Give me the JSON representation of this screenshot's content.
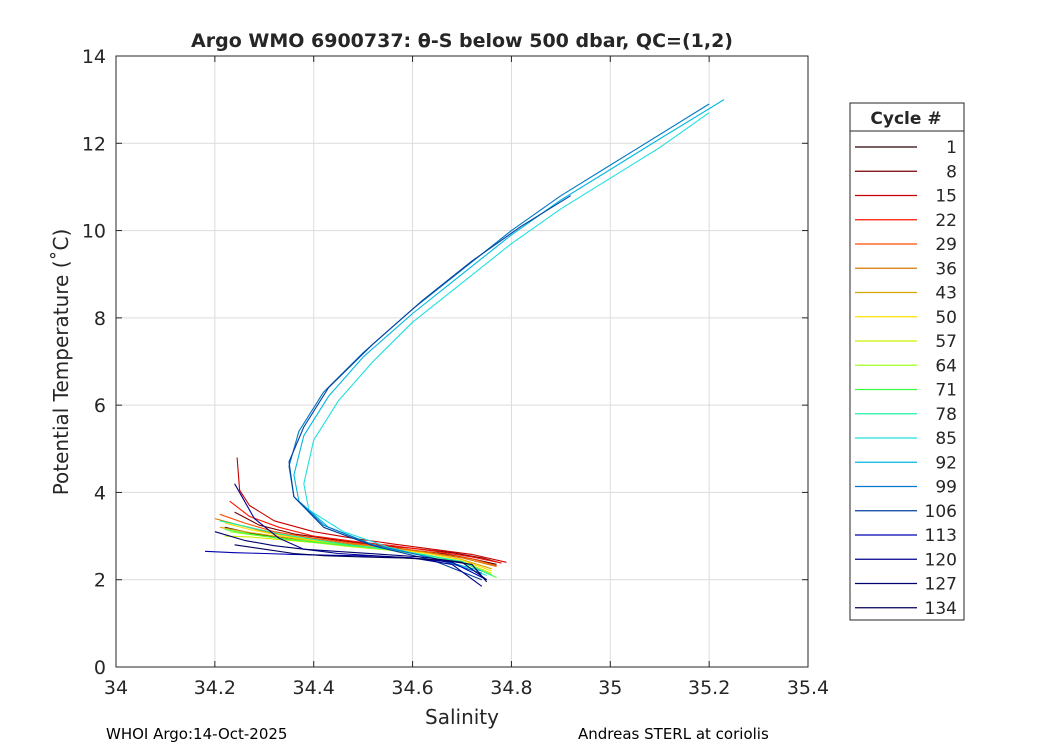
{
  "chart_data": {
    "type": "line",
    "title": "Argo WMO 6900737: θ-S below 500 dbar,  QC=(1,2)",
    "xlabel": "Salinity",
    "ylabel": "Potential Temperature (˚C)",
    "xlim": [
      34,
      35.4
    ],
    "ylim": [
      0,
      14
    ],
    "xticks": [
      "34",
      "34.2",
      "34.4",
      "34.6",
      "34.8",
      "35",
      "35.2",
      "35.4"
    ],
    "yticks": [
      "0",
      "2",
      "4",
      "6",
      "8",
      "10",
      "12",
      "14"
    ],
    "grid": true,
    "legend": {
      "title": "Cycle #",
      "placement": "outside-right",
      "entries": [
        "1",
        "8",
        "15",
        "22",
        "29",
        "36",
        "43",
        "50",
        "57",
        "64",
        "71",
        "78",
        "85",
        "92",
        "99",
        "106",
        "113",
        "120",
        "127",
        "134"
      ],
      "colors": [
        "#2a0000",
        "#7a0000",
        "#c80000",
        "#ff1400",
        "#ff4c00",
        "#d87a00",
        "#d4a800",
        "#ffe000",
        "#ccf000",
        "#a0ff20",
        "#40ff40",
        "#20f0a0",
        "#20e0e0",
        "#00b8e0",
        "#0078c8",
        "#0040a0",
        "#0000b0",
        "#00008c",
        "#000070",
        "#000058"
      ]
    },
    "series": [
      {
        "cycle": "1",
        "color": "#2a0000",
        "x": [
          34.22,
          34.28,
          34.35,
          34.42,
          34.5,
          34.58,
          34.66,
          34.72,
          34.77
        ],
        "y": [
          3.2,
          3.05,
          2.95,
          2.85,
          2.78,
          2.7,
          2.6,
          2.48,
          2.35
        ]
      },
      {
        "cycle": "8",
        "color": "#7a0000",
        "x": [
          34.24,
          34.29,
          34.36,
          34.44,
          34.52,
          34.6,
          34.68,
          34.74,
          34.78
        ],
        "y": [
          3.55,
          3.25,
          3.05,
          2.92,
          2.8,
          2.72,
          2.62,
          2.5,
          2.38
        ]
      },
      {
        "cycle": "15",
        "color": "#c80000",
        "x": [
          34.245,
          34.25,
          34.27,
          34.32,
          34.4,
          34.48,
          34.56,
          34.64,
          34.72,
          34.79
        ],
        "y": [
          4.8,
          4.05,
          3.7,
          3.35,
          3.1,
          2.95,
          2.82,
          2.7,
          2.58,
          2.4
        ]
      },
      {
        "cycle": "22",
        "color": "#ff1400",
        "x": [
          34.23,
          34.27,
          34.33,
          34.4,
          34.48,
          34.56,
          34.64,
          34.72,
          34.78
        ],
        "y": [
          3.8,
          3.45,
          3.2,
          3.0,
          2.88,
          2.78,
          2.66,
          2.52,
          2.38
        ]
      },
      {
        "cycle": "29",
        "color": "#ff4c00",
        "x": [
          34.21,
          34.26,
          34.32,
          34.4,
          34.48,
          34.56,
          34.64,
          34.72,
          34.77
        ],
        "y": [
          3.5,
          3.3,
          3.1,
          2.95,
          2.84,
          2.74,
          2.62,
          2.48,
          2.32
        ]
      },
      {
        "cycle": "36",
        "color": "#d87a00",
        "x": [
          34.2,
          34.25,
          34.31,
          34.38,
          34.46,
          34.54,
          34.62,
          34.7,
          34.77
        ],
        "y": [
          3.4,
          3.25,
          3.08,
          2.95,
          2.84,
          2.74,
          2.64,
          2.5,
          2.3
        ]
      },
      {
        "cycle": "43",
        "color": "#d4a800",
        "x": [
          34.21,
          34.26,
          34.32,
          34.39,
          34.46,
          34.54,
          34.62,
          34.7,
          34.76
        ],
        "y": [
          3.2,
          3.1,
          3.0,
          2.9,
          2.8,
          2.72,
          2.62,
          2.46,
          2.25
        ]
      },
      {
        "cycle": "50",
        "color": "#ffe000",
        "x": [
          34.22,
          34.27,
          34.33,
          34.4,
          34.47,
          34.55,
          34.63,
          34.7,
          34.76
        ],
        "y": [
          3.3,
          3.15,
          3.02,
          2.9,
          2.8,
          2.72,
          2.6,
          2.45,
          2.2
        ]
      },
      {
        "cycle": "57",
        "color": "#ccf000",
        "x": [
          34.22,
          34.27,
          34.33,
          34.4,
          34.47,
          34.55,
          34.62,
          34.7,
          34.76
        ],
        "y": [
          3.0,
          2.98,
          2.92,
          2.85,
          2.76,
          2.68,
          2.58,
          2.42,
          2.15
        ]
      },
      {
        "cycle": "64",
        "color": "#a0ff20",
        "x": [
          34.23,
          34.28,
          34.34,
          34.41,
          34.48,
          34.55,
          34.63,
          34.7,
          34.76
        ],
        "y": [
          3.1,
          3.02,
          2.94,
          2.86,
          2.78,
          2.68,
          2.56,
          2.4,
          2.12
        ]
      },
      {
        "cycle": "71",
        "color": "#40ff40",
        "x": [
          34.22,
          34.27,
          34.33,
          34.4,
          34.47,
          34.55,
          34.62,
          34.7,
          34.77
        ],
        "y": [
          3.15,
          3.05,
          2.95,
          2.86,
          2.78,
          2.7,
          2.58,
          2.4,
          2.05
        ]
      },
      {
        "cycle": "78",
        "color": "#20f0a0",
        "x": [
          34.21,
          34.27,
          34.33,
          34.4,
          34.47,
          34.55,
          34.62,
          34.7,
          34.76
        ],
        "y": [
          3.35,
          3.2,
          3.05,
          2.92,
          2.8,
          2.7,
          2.58,
          2.42,
          2.1
        ]
      },
      {
        "cycle": "85",
        "color": "#20e0e0",
        "x": [
          34.75,
          34.66,
          34.55,
          34.46,
          34.39,
          34.38,
          34.4,
          34.45,
          34.52,
          34.6,
          34.7,
          34.8,
          34.9,
          35.0,
          35.1,
          35.2
        ],
        "y": [
          2.1,
          2.45,
          2.75,
          3.1,
          3.6,
          4.2,
          5.2,
          6.1,
          7.0,
          7.9,
          8.8,
          9.7,
          10.5,
          11.2,
          11.9,
          12.7
        ]
      },
      {
        "cycle": "92",
        "color": "#00b8e0",
        "x": [
          34.74,
          34.64,
          34.52,
          34.43,
          34.37,
          34.36,
          34.38,
          34.43,
          34.5,
          34.6,
          34.7,
          34.8,
          34.9,
          35.0,
          35.1,
          35.23
        ],
        "y": [
          2.2,
          2.5,
          2.8,
          3.2,
          3.8,
          4.4,
          5.3,
          6.2,
          7.1,
          8.1,
          9.0,
          9.9,
          10.7,
          11.4,
          12.1,
          13.0
        ]
      },
      {
        "cycle": "99",
        "color": "#0078c8",
        "x": [
          34.74,
          34.64,
          34.52,
          34.42,
          34.36,
          34.35,
          34.37,
          34.42,
          34.5,
          34.6,
          34.7,
          34.8,
          34.9,
          35.0,
          35.1,
          35.2
        ],
        "y": [
          2.15,
          2.5,
          2.8,
          3.25,
          3.9,
          4.6,
          5.4,
          6.3,
          7.2,
          8.2,
          9.1,
          10.0,
          10.8,
          11.5,
          12.2,
          12.9
        ]
      },
      {
        "cycle": "106",
        "color": "#0040a0",
        "x": [
          34.74,
          34.64,
          34.52,
          34.42,
          34.36,
          34.35,
          34.38,
          34.43,
          34.52,
          34.62,
          34.72,
          34.82,
          34.92
        ],
        "y": [
          2.0,
          2.45,
          2.78,
          3.2,
          3.9,
          4.7,
          5.5,
          6.4,
          7.4,
          8.4,
          9.3,
          10.1,
          10.8
        ]
      },
      {
        "cycle": "113",
        "color": "#0000b0",
        "x": [
          34.18,
          34.24,
          34.3,
          34.36,
          34.44,
          34.52,
          34.6,
          34.68,
          34.75
        ],
        "y": [
          2.65,
          2.62,
          2.6,
          2.58,
          2.56,
          2.54,
          2.5,
          2.4,
          2.0
        ]
      },
      {
        "cycle": "120",
        "color": "#00008c",
        "x": [
          34.24,
          34.28,
          34.33,
          34.38,
          34.45,
          34.52,
          34.6,
          34.68,
          34.74
        ],
        "y": [
          4.2,
          3.4,
          2.95,
          2.7,
          2.6,
          2.55,
          2.5,
          2.35,
          1.85
        ]
      },
      {
        "cycle": "127",
        "color": "#000070",
        "x": [
          34.2,
          34.26,
          34.32,
          34.38,
          34.46,
          34.54,
          34.62,
          34.7,
          34.75
        ],
        "y": [
          3.1,
          2.9,
          2.78,
          2.7,
          2.64,
          2.58,
          2.52,
          2.4,
          2.0
        ]
      },
      {
        "cycle": "134",
        "color": "#000058",
        "x": [
          34.24,
          34.3,
          34.36,
          34.42,
          34.5,
          34.58,
          34.66,
          34.72,
          34.75
        ],
        "y": [
          2.8,
          2.7,
          2.6,
          2.55,
          2.52,
          2.5,
          2.45,
          2.35,
          1.95
        ]
      }
    ]
  },
  "footer": {
    "left": "WHOI Argo:14-Oct-2025",
    "right": "Andreas STERL at coriolis"
  }
}
